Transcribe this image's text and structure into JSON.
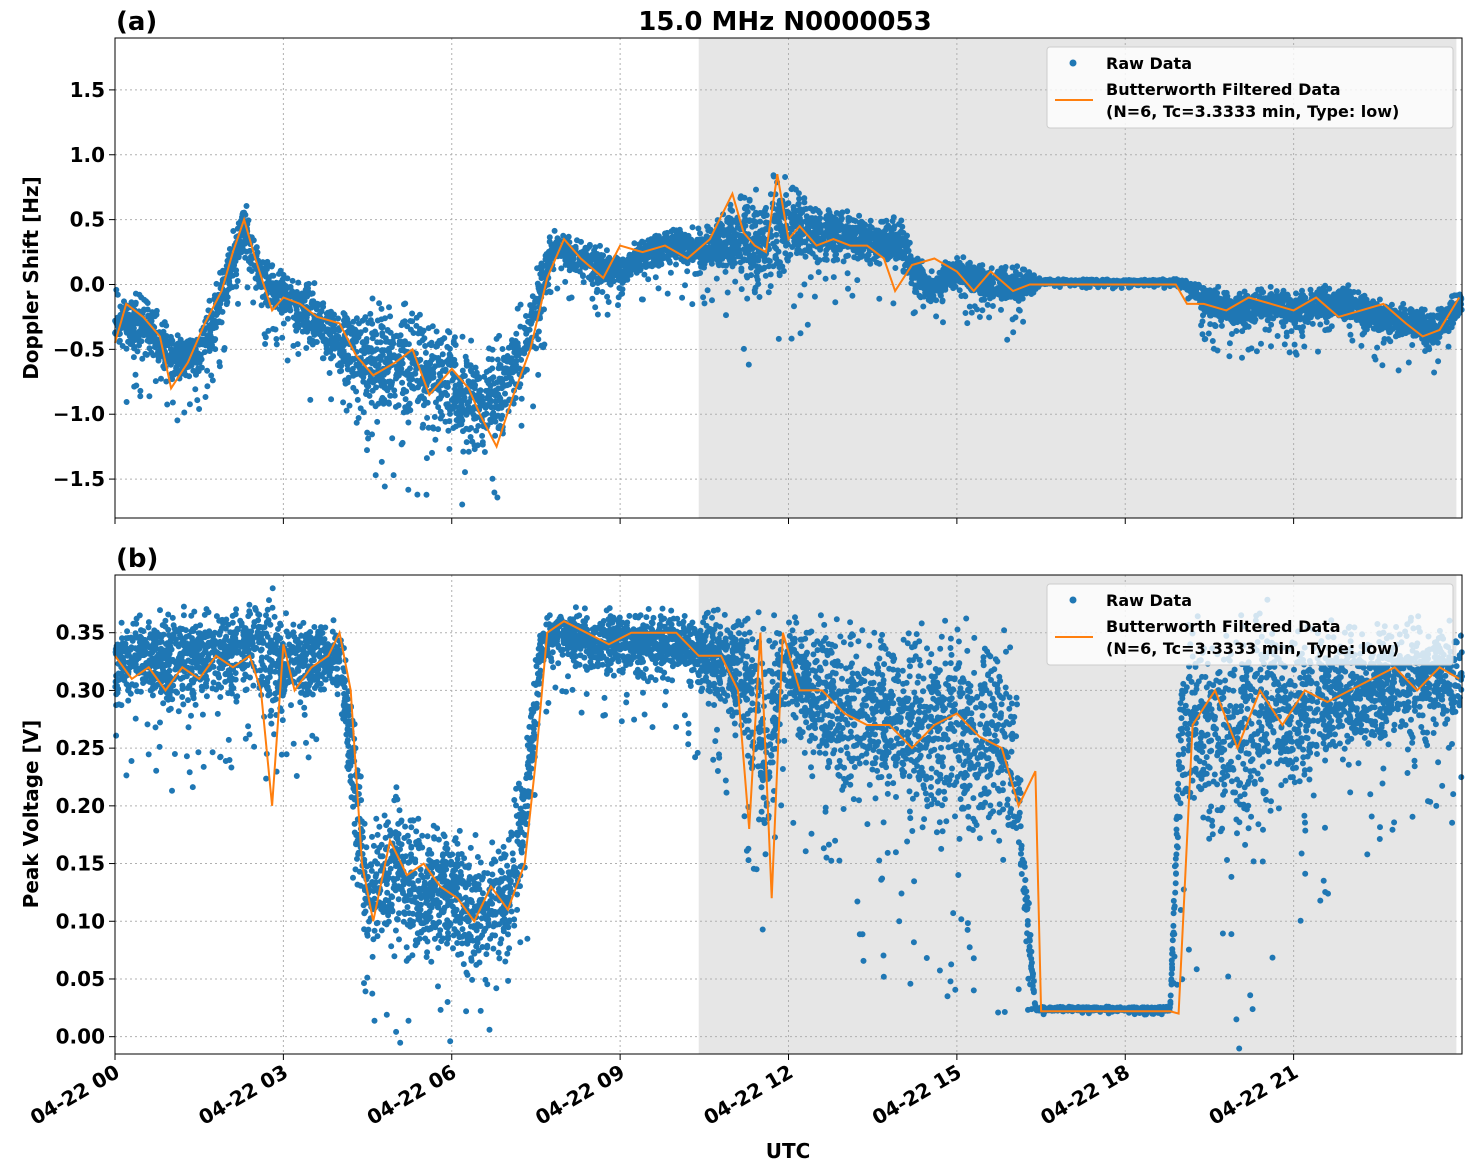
{
  "chart_data": [
    {
      "panel_label": "(a)",
      "type": "scatter",
      "title": "15.0 MHz N0000053",
      "xlabel": "",
      "ylabel": "Doppler Shift [Hz]",
      "xlim_hours": [
        0,
        24
      ],
      "ylim": [
        -1.8,
        1.9
      ],
      "yticks": [
        -1.5,
        -1.0,
        -0.5,
        0.0,
        0.5,
        1.0,
        1.5
      ],
      "ytick_labels": [
        "−1.5",
        "−1.0",
        "−0.5",
        "0.0",
        "0.5",
        "1.0",
        "1.5"
      ],
      "grid": true,
      "legend_placement": "upper right",
      "night_shading_hours": [
        10.4,
        23.9
      ],
      "shading_color": "#e6e6e6",
      "series": [
        {
          "name": "Raw Data",
          "style": "points",
          "color": "#1f77b4",
          "x_hours": [
            0.0,
            0.5,
            1.0,
            1.5,
            2.0,
            2.3,
            2.6,
            3.0,
            3.5,
            4.0,
            4.5,
            5.0,
            5.5,
            6.0,
            6.5,
            7.0,
            7.5,
            7.8,
            8.5,
            9.0,
            9.5,
            10.0,
            10.5,
            11.0,
            11.5,
            12.0,
            12.5,
            13.0,
            13.5,
            14.0,
            14.5,
            15.0,
            15.5,
            16.0,
            16.5,
            17.0,
            17.5,
            18.0,
            18.5,
            19.0,
            19.5,
            20.0,
            20.5,
            21.0,
            21.5,
            22.0,
            22.5,
            23.0,
            23.5,
            23.95
          ],
          "center": [
            -0.3,
            -0.3,
            -0.55,
            -0.55,
            0.05,
            0.45,
            0.05,
            -0.1,
            -0.25,
            -0.45,
            -0.55,
            -0.6,
            -0.7,
            -0.75,
            -1.0,
            -0.75,
            -0.2,
            0.3,
            0.15,
            0.1,
            0.25,
            0.3,
            0.25,
            0.35,
            0.3,
            0.5,
            0.4,
            0.35,
            0.35,
            0.3,
            -0.05,
            0.1,
            0.0,
            0.0,
            0.02,
            0.02,
            0.02,
            0.02,
            0.02,
            0.02,
            -0.15,
            -0.2,
            -0.15,
            -0.2,
            -0.15,
            -0.15,
            -0.25,
            -0.3,
            -0.35,
            -0.15
          ],
          "spread": [
            0.25,
            0.25,
            0.2,
            0.2,
            0.25,
            0.25,
            0.2,
            0.2,
            0.3,
            0.3,
            0.5,
            0.55,
            0.45,
            0.5,
            0.5,
            0.45,
            0.3,
            0.15,
            0.15,
            0.15,
            0.15,
            0.15,
            0.2,
            0.3,
            0.45,
            0.4,
            0.25,
            0.2,
            0.2,
            0.2,
            0.15,
            0.15,
            0.15,
            0.2,
            0.02,
            0.02,
            0.02,
            0.02,
            0.02,
            0.02,
            0.15,
            0.15,
            0.15,
            0.15,
            0.15,
            0.15,
            0.15,
            0.15,
            0.15,
            0.15
          ]
        },
        {
          "name": "Butterworth Filtered Data\n(N=6, Tc=3.3333 min, Type: low)",
          "legend_line1": "Butterworth Filtered Data",
          "legend_line2": "(N=6, Tc=3.3333 min, Type: low)",
          "style": "line",
          "color": "#ff7f0e",
          "x_hours": [
            0.0,
            0.2,
            0.5,
            0.8,
            1.0,
            1.3,
            1.6,
            1.9,
            2.1,
            2.3,
            2.5,
            2.8,
            3.0,
            3.3,
            3.6,
            4.0,
            4.3,
            4.6,
            5.0,
            5.3,
            5.6,
            6.0,
            6.3,
            6.5,
            6.8,
            7.1,
            7.4,
            7.7,
            8.0,
            8.3,
            8.7,
            9.0,
            9.4,
            9.8,
            10.2,
            10.6,
            11.0,
            11.2,
            11.4,
            11.6,
            11.8,
            12.0,
            12.2,
            12.5,
            12.8,
            13.1,
            13.4,
            13.7,
            13.9,
            14.2,
            14.6,
            15.0,
            15.3,
            15.6,
            16.0,
            16.3,
            16.5,
            17.0,
            17.5,
            18.0,
            18.5,
            18.9,
            19.1,
            19.4,
            19.8,
            20.2,
            20.6,
            21.0,
            21.4,
            21.8,
            22.2,
            22.6,
            23.0,
            23.3,
            23.6,
            23.95
          ],
          "y": [
            -0.45,
            -0.15,
            -0.25,
            -0.4,
            -0.8,
            -0.6,
            -0.3,
            -0.05,
            0.25,
            0.5,
            0.2,
            -0.2,
            -0.1,
            -0.15,
            -0.25,
            -0.3,
            -0.55,
            -0.7,
            -0.6,
            -0.5,
            -0.85,
            -0.65,
            -0.8,
            -1.0,
            -1.25,
            -0.85,
            -0.5,
            0.05,
            0.35,
            0.2,
            0.05,
            0.3,
            0.25,
            0.3,
            0.2,
            0.35,
            0.7,
            0.4,
            0.3,
            0.25,
            0.85,
            0.35,
            0.45,
            0.3,
            0.35,
            0.3,
            0.3,
            0.2,
            -0.05,
            0.15,
            0.2,
            0.1,
            -0.05,
            0.1,
            -0.05,
            0.0,
            0.0,
            0.0,
            0.0,
            0.0,
            0.0,
            0.0,
            -0.15,
            -0.15,
            -0.2,
            -0.1,
            -0.15,
            -0.2,
            -0.1,
            -0.25,
            -0.2,
            -0.15,
            -0.3,
            -0.4,
            -0.35,
            -0.1
          ]
        }
      ]
    },
    {
      "panel_label": "(b)",
      "type": "scatter",
      "title": "",
      "xlabel": "UTC",
      "ylabel": "Peak Voltage [V]",
      "xlim_hours": [
        0,
        24
      ],
      "ylim": [
        -0.015,
        0.4
      ],
      "yticks": [
        0.0,
        0.05,
        0.1,
        0.15,
        0.2,
        0.25,
        0.3,
        0.35
      ],
      "ytick_labels": [
        "0.00",
        "0.05",
        "0.10",
        "0.15",
        "0.20",
        "0.25",
        "0.30",
        "0.35"
      ],
      "xticks_hours": [
        0,
        3,
        6,
        9,
        12,
        15,
        18,
        21
      ],
      "xtick_labels": [
        "04-22 00",
        "04-22 03",
        "04-22 06",
        "04-22 09",
        "04-22 12",
        "04-22 15",
        "04-22 18",
        "04-22 21"
      ],
      "grid": true,
      "legend_placement": "upper right",
      "night_shading_hours": [
        10.4,
        23.9
      ],
      "shading_color": "#e6e6e6",
      "series": [
        {
          "name": "Raw Data",
          "style": "points",
          "color": "#1f77b4",
          "x_hours": [
            0.0,
            0.5,
            1.0,
            1.5,
            2.0,
            2.5,
            2.8,
            3.0,
            3.5,
            4.0,
            4.2,
            4.5,
            5.0,
            5.5,
            6.0,
            6.5,
            7.0,
            7.3,
            7.6,
            8.0,
            8.5,
            9.0,
            9.5,
            10.0,
            10.5,
            11.0,
            11.3,
            11.6,
            11.8,
            12.0,
            12.5,
            13.0,
            13.5,
            14.0,
            14.5,
            15.0,
            15.5,
            16.0,
            16.4,
            16.6,
            17.0,
            17.5,
            18.0,
            18.5,
            18.8,
            19.0,
            19.5,
            20.0,
            20.5,
            21.0,
            21.5,
            22.0,
            22.5,
            23.0,
            23.5,
            23.95
          ],
          "center": [
            0.32,
            0.33,
            0.32,
            0.33,
            0.33,
            0.34,
            0.32,
            0.32,
            0.33,
            0.33,
            0.25,
            0.12,
            0.15,
            0.12,
            0.13,
            0.1,
            0.12,
            0.2,
            0.34,
            0.35,
            0.34,
            0.34,
            0.34,
            0.34,
            0.33,
            0.32,
            0.3,
            0.25,
            0.3,
            0.32,
            0.3,
            0.28,
            0.28,
            0.27,
            0.27,
            0.27,
            0.26,
            0.25,
            0.024,
            0.024,
            0.024,
            0.024,
            0.024,
            0.024,
            0.024,
            0.27,
            0.27,
            0.26,
            0.28,
            0.28,
            0.29,
            0.3,
            0.3,
            0.31,
            0.31,
            0.31
          ],
          "spread": [
            0.04,
            0.04,
            0.05,
            0.05,
            0.04,
            0.04,
            0.06,
            0.05,
            0.04,
            0.03,
            0.06,
            0.05,
            0.07,
            0.07,
            0.07,
            0.06,
            0.06,
            0.07,
            0.03,
            0.02,
            0.03,
            0.03,
            0.03,
            0.03,
            0.04,
            0.05,
            0.07,
            0.12,
            0.06,
            0.05,
            0.07,
            0.08,
            0.09,
            0.09,
            0.1,
            0.1,
            0.1,
            0.1,
            0.002,
            0.002,
            0.002,
            0.002,
            0.002,
            0.002,
            0.002,
            0.09,
            0.1,
            0.11,
            0.09,
            0.08,
            0.07,
            0.06,
            0.06,
            0.06,
            0.05,
            0.05
          ]
        },
        {
          "name": "Butterworth Filtered Data\n(N=6, Tc=3.3333 min, Type: low)",
          "legend_line1": "Butterworth Filtered Data",
          "legend_line2": "(N=6, Tc=3.3333 min, Type: low)",
          "style": "line",
          "color": "#ff7f0e",
          "x_hours": [
            0.0,
            0.3,
            0.6,
            0.9,
            1.2,
            1.5,
            1.8,
            2.1,
            2.4,
            2.6,
            2.8,
            3.0,
            3.2,
            3.5,
            3.8,
            4.0,
            4.2,
            4.4,
            4.6,
            4.9,
            5.2,
            5.5,
            5.8,
            6.1,
            6.4,
            6.7,
            7.0,
            7.3,
            7.5,
            7.7,
            8.0,
            8.4,
            8.8,
            9.2,
            9.6,
            10.0,
            10.4,
            10.8,
            11.1,
            11.3,
            11.5,
            11.7,
            11.9,
            12.2,
            12.6,
            13.0,
            13.4,
            13.8,
            14.2,
            14.6,
            15.0,
            15.4,
            15.8,
            16.1,
            16.4,
            16.5,
            17.0,
            17.5,
            18.0,
            18.5,
            18.8,
            18.95,
            19.2,
            19.6,
            20.0,
            20.4,
            20.8,
            21.2,
            21.6,
            22.0,
            22.4,
            22.8,
            23.2,
            23.6,
            23.95
          ],
          "y": [
            0.33,
            0.31,
            0.32,
            0.3,
            0.32,
            0.31,
            0.33,
            0.32,
            0.33,
            0.3,
            0.2,
            0.34,
            0.3,
            0.32,
            0.33,
            0.35,
            0.3,
            0.15,
            0.1,
            0.17,
            0.14,
            0.15,
            0.13,
            0.12,
            0.1,
            0.13,
            0.11,
            0.15,
            0.24,
            0.35,
            0.36,
            0.35,
            0.34,
            0.35,
            0.35,
            0.35,
            0.33,
            0.33,
            0.3,
            0.18,
            0.35,
            0.12,
            0.35,
            0.3,
            0.3,
            0.28,
            0.27,
            0.27,
            0.25,
            0.27,
            0.28,
            0.26,
            0.25,
            0.2,
            0.23,
            0.022,
            0.022,
            0.022,
            0.022,
            0.022,
            0.022,
            0.02,
            0.27,
            0.3,
            0.25,
            0.3,
            0.27,
            0.3,
            0.29,
            0.3,
            0.31,
            0.32,
            0.3,
            0.32,
            0.31
          ]
        }
      ]
    }
  ]
}
